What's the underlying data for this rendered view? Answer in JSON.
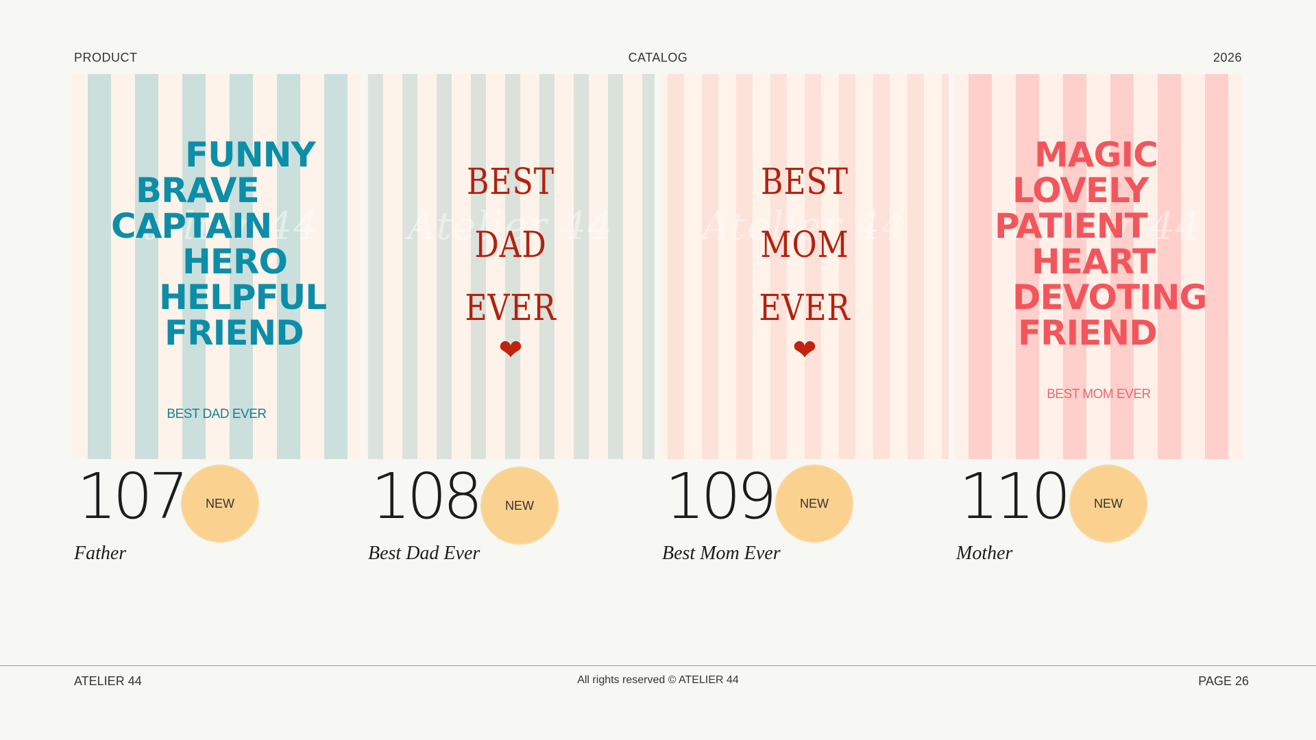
{
  "header": {
    "left": "PRODUCT",
    "center": "CATALOG",
    "right": "2026"
  },
  "cards": [
    {
      "watermark": "Atelier 44",
      "words": [
        "FUNNY",
        "BRAVE",
        "CAPTAIN",
        "HERO",
        "HELPFUL",
        "FRIEND"
      ],
      "tag": "BEST DAD EVER",
      "number": "107",
      "badge": "NEW",
      "name": "Father"
    },
    {
      "watermark": "Atelier 44",
      "words": [
        "BEST",
        "DAD",
        "EVER"
      ],
      "heart": "❤",
      "number": "108",
      "badge": "NEW",
      "name": "Best Dad Ever"
    },
    {
      "watermark": "Atelier 44",
      "words": [
        "BEST",
        "MOM",
        "EVER"
      ],
      "heart": "❤",
      "number": "109",
      "badge": "NEW",
      "name": "Best Mom Ever"
    },
    {
      "watermark": "Atelier 44",
      "words": [
        "MAGIC",
        "LOVELY",
        "PATIENT",
        "HEART",
        "DEVOTING",
        "FRIEND"
      ],
      "tag": "BEST MOM EVER",
      "number": "110",
      "badge": "NEW",
      "name": "Mother"
    }
  ],
  "footer": {
    "left": "ATELIER 44",
    "center": "All rights reserved © ATELIER 44",
    "right": "PAGE 26"
  },
  "colors": {
    "father_text": "#0c8ea8",
    "mother_text": "#f2565c",
    "serif_red": "#b3210f",
    "badge": "#fbd18f"
  }
}
